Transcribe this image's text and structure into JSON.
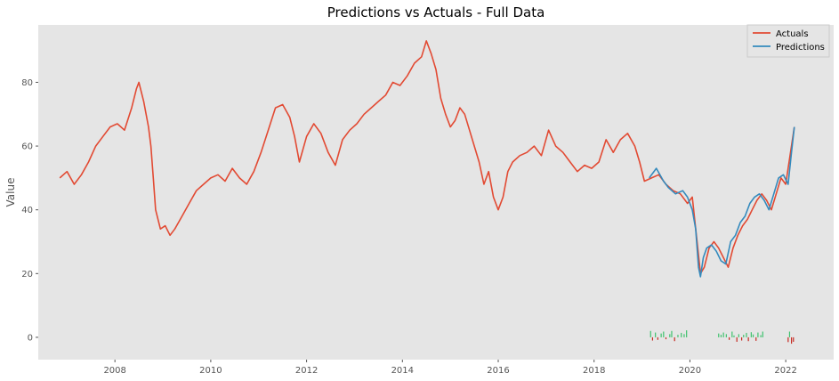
{
  "chart_data": {
    "type": "line",
    "title": "Predictions vs Actuals - Full Data",
    "xlabel": "",
    "ylabel": "Value",
    "xlim": [
      2006.4,
      2023.0
    ],
    "ylim": [
      -7,
      98
    ],
    "grid": false,
    "legend_position": "top-right",
    "x_ticks": [
      2008,
      2010,
      2012,
      2014,
      2016,
      2018,
      2020,
      2022
    ],
    "y_ticks": [
      0,
      20,
      40,
      60,
      80
    ],
    "series": [
      {
        "name": "Actuals",
        "color": "#e24a33",
        "x": [
          2006.85,
          2007.0,
          2007.15,
          2007.3,
          2007.45,
          2007.6,
          2007.75,
          2007.9,
          2008.05,
          2008.2,
          2008.35,
          2008.45,
          2008.5,
          2008.6,
          2008.7,
          2008.75,
          2008.8,
          2008.85,
          2008.95,
          2009.05,
          2009.15,
          2009.25,
          2009.4,
          2009.55,
          2009.7,
          2009.85,
          2010.0,
          2010.15,
          2010.3,
          2010.45,
          2010.6,
          2010.75,
          2010.9,
          2011.05,
          2011.2,
          2011.35,
          2011.5,
          2011.65,
          2011.75,
          2011.85,
          2012.0,
          2012.15,
          2012.3,
          2012.45,
          2012.6,
          2012.75,
          2012.9,
          2013.05,
          2013.2,
          2013.35,
          2013.5,
          2013.65,
          2013.8,
          2013.95,
          2014.1,
          2014.25,
          2014.4,
          2014.5,
          2014.6,
          2014.7,
          2014.8,
          2014.9,
          2015.0,
          2015.1,
          2015.2,
          2015.3,
          2015.4,
          2015.5,
          2015.6,
          2015.7,
          2015.8,
          2015.9,
          2016.0,
          2016.1,
          2016.2,
          2016.3,
          2016.45,
          2016.6,
          2016.75,
          2016.9,
          2017.05,
          2017.2,
          2017.35,
          2017.5,
          2017.65,
          2017.8,
          2017.95,
          2018.1,
          2018.25,
          2018.4,
          2018.55,
          2018.7,
          2018.85,
          2018.95,
          2019.05,
          2019.2,
          2019.35,
          2019.5,
          2019.65,
          2019.8,
          2019.95,
          2020.05,
          2020.15,
          2020.22,
          2020.3,
          2020.4,
          2020.5,
          2020.6,
          2020.7,
          2020.8,
          2020.9,
          2021.0,
          2021.1,
          2021.2,
          2021.3,
          2021.4,
          2021.5,
          2021.6,
          2021.7,
          2021.8,
          2021.9,
          2022.0,
          2022.1,
          2022.18
        ],
        "values": [
          50,
          52,
          48,
          51,
          55,
          60,
          63,
          66,
          67,
          65,
          72,
          78,
          80,
          74,
          66,
          60,
          50,
          40,
          34,
          35,
          32,
          34,
          38,
          42,
          46,
          48,
          50,
          51,
          49,
          53,
          50,
          48,
          52,
          58,
          65,
          72,
          73,
          69,
          63,
          55,
          63,
          67,
          64,
          58,
          54,
          62,
          65,
          67,
          70,
          72,
          74,
          76,
          80,
          79,
          82,
          86,
          88,
          93,
          89,
          84,
          75,
          70,
          66,
          68,
          72,
          70,
          65,
          60,
          55,
          48,
          52,
          44,
          40,
          44,
          52,
          55,
          57,
          58,
          60,
          57,
          65,
          60,
          58,
          55,
          52,
          54,
          53,
          55,
          62,
          58,
          62,
          64,
          60,
          55,
          49,
          50,
          51,
          48,
          46,
          45,
          42,
          44,
          30,
          20,
          22,
          28,
          30,
          28,
          25,
          22,
          28,
          32,
          35,
          37,
          40,
          43,
          45,
          43,
          40,
          45,
          50,
          48,
          58,
          66
        ]
      },
      {
        "name": "Predictions",
        "color": "#348abd",
        "x": [
          2019.15,
          2019.3,
          2019.45,
          2019.55,
          2019.7,
          2019.85,
          2019.95,
          2020.05,
          2020.12,
          2020.18,
          2020.22,
          2020.28,
          2020.35,
          2020.45,
          2020.55,
          2020.65,
          2020.75,
          2020.85,
          2020.95,
          2021.05,
          2021.15,
          2021.25,
          2021.35,
          2021.45,
          2021.55,
          2021.65,
          2021.75,
          2021.85,
          2021.95,
          2022.05,
          2022.12,
          2022.18
        ],
        "values": [
          50,
          53,
          49,
          47,
          45,
          46,
          44,
          40,
          34,
          22,
          19,
          25,
          28,
          29,
          27,
          24,
          23,
          30,
          32,
          36,
          38,
          42,
          44,
          45,
          43,
          40,
          45,
          50,
          51,
          48,
          58,
          66
        ]
      }
    ],
    "residual_bars": {
      "colors": {
        "positive": "#3fc26d",
        "negative": "#c62a22"
      },
      "x": [
        2019.18,
        2019.22,
        2019.28,
        2019.33,
        2019.4,
        2019.45,
        2019.5,
        2019.58,
        2019.62,
        2019.68,
        2019.75,
        2019.82,
        2019.88,
        2019.93,
        2020.6,
        2020.65,
        2020.7,
        2020.76,
        2020.82,
        2020.88,
        2020.92,
        2020.98,
        2021.02,
        2021.08,
        2021.12,
        2021.18,
        2021.22,
        2021.28,
        2021.32,
        2021.38,
        2021.42,
        2021.48,
        2021.52,
        2022.05,
        2022.08,
        2022.12,
        2022.16
      ],
      "values": [
        2.0,
        -1.0,
        1.5,
        -0.8,
        1.2,
        1.8,
        -0.6,
        1.0,
        2.0,
        -1.2,
        0.8,
        1.4,
        1.0,
        2.2,
        1.2,
        0.8,
        1.5,
        1.0,
        -0.8,
        1.8,
        0.6,
        -1.4,
        1.0,
        -1.0,
        0.8,
        1.4,
        -1.2,
        1.6,
        0.9,
        -1.1,
        1.5,
        0.7,
        1.8,
        -1.5,
        1.8,
        -2.0,
        -1.4
      ]
    }
  }
}
